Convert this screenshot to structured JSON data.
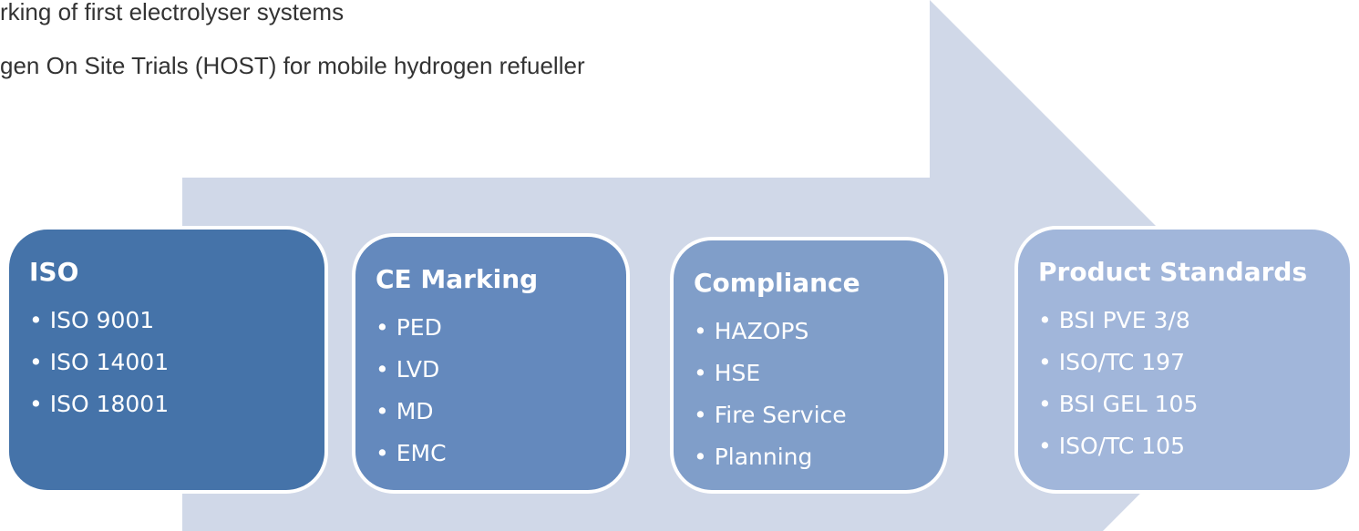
{
  "intro": [
    "rking of first electrolyser systems",
    "gen On Site Trials (HOST) for mobile hydrogen refueller"
  ],
  "boxes": [
    {
      "title": "ISO",
      "items": [
        "ISO 9001",
        "ISO 14001",
        "ISO 18001"
      ]
    },
    {
      "title": "CE Marking",
      "items": [
        "PED",
        "LVD",
        "MD",
        "EMC"
      ]
    },
    {
      "title": "Compliance",
      "items": [
        "HAZOPS",
        "HSE",
        "Fire Service",
        "Planning"
      ]
    },
    {
      "title": "Product Standards",
      "items": [
        "BSI PVE 3/8",
        "ISO/TC 197",
        "BSI GEL 105",
        "ISO/TC 105"
      ]
    }
  ]
}
